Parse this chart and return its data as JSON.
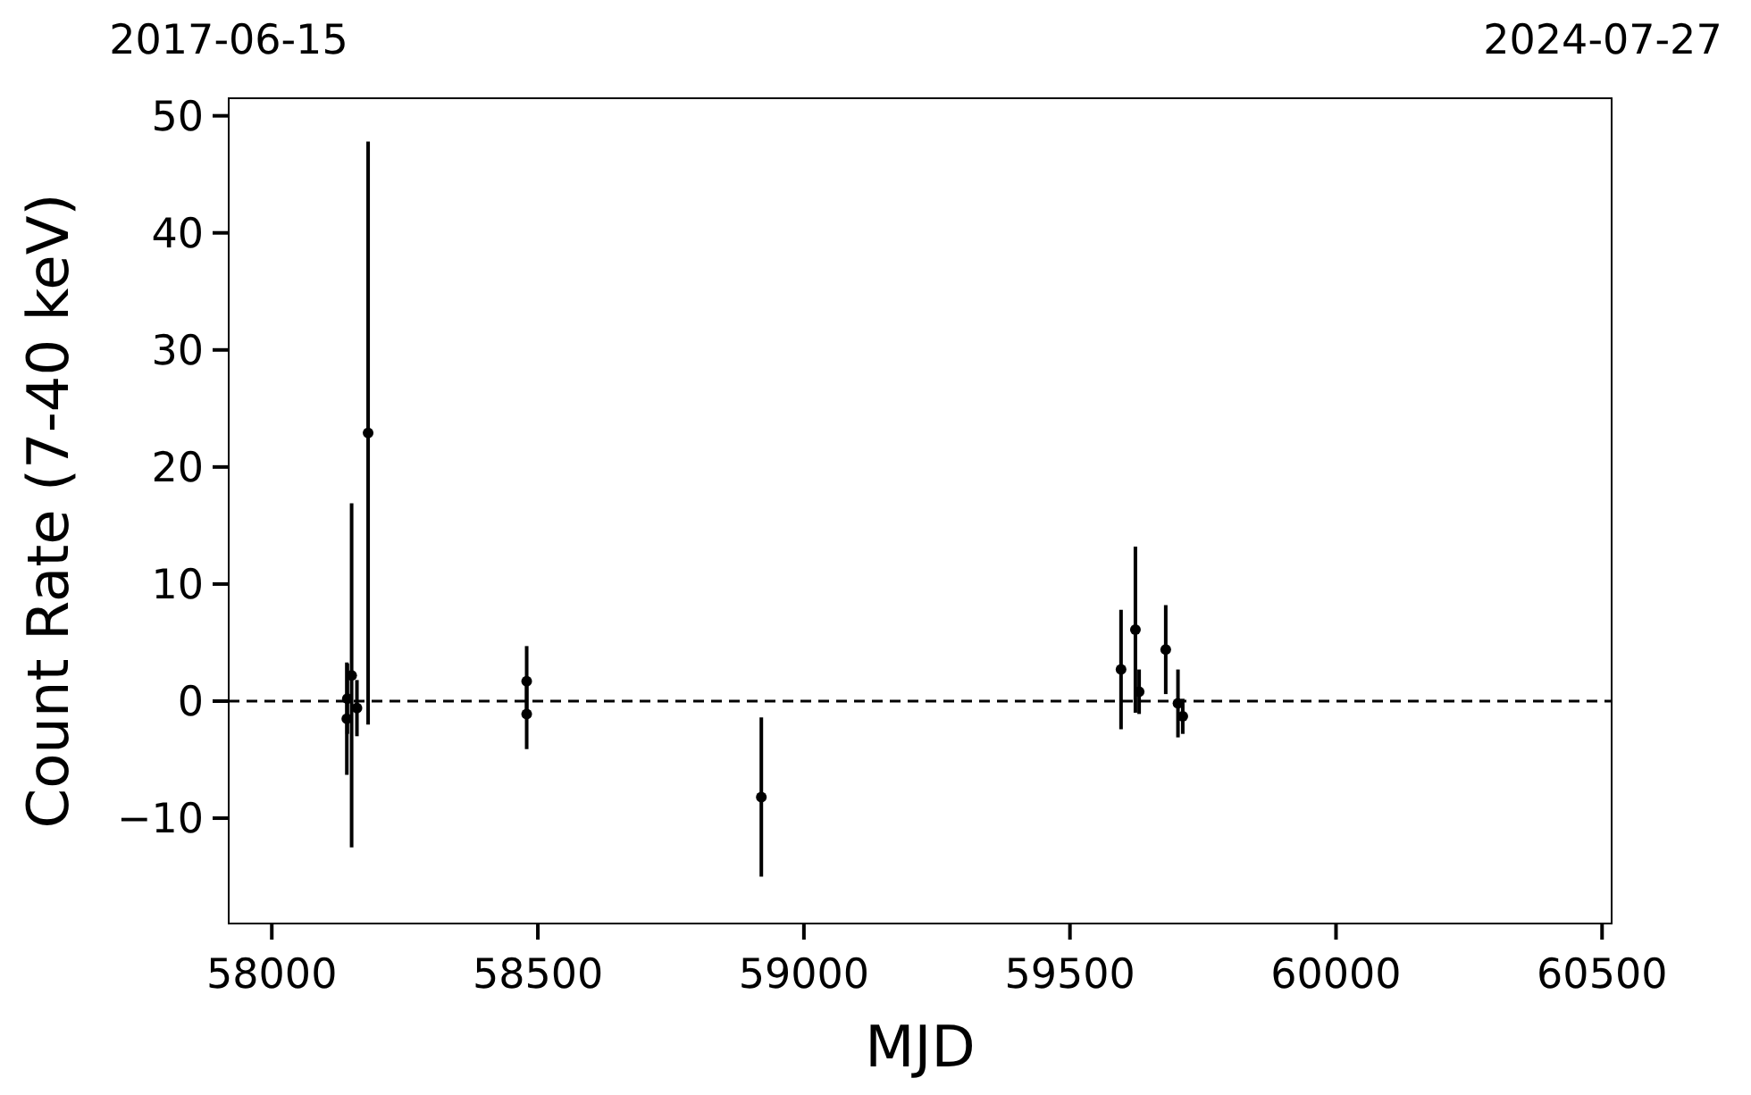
{
  "chart_data": {
    "type": "scatter",
    "xlabel": "MJD",
    "ylabel": "Count Rate (7-40 keV)",
    "x": [
      58141,
      58142,
      58150,
      58160,
      58181,
      58479,
      58479,
      58920,
      59596,
      59623,
      59630,
      59680,
      59703,
      59712
    ],
    "series": [
      {
        "color": "#000000",
        "values": [
          -1.5,
          0.2,
          2.2,
          -0.6,
          22.9,
          1.7,
          -1.1,
          -8.2,
          2.7,
          6.1,
          0.8,
          4.4,
          -0.2,
          -1.3
        ],
        "errors": [
          4.8,
          3,
          14.7,
          2.4,
          24.9,
          3,
          3,
          6.8,
          5.1,
          7.1,
          1.9,
          3.8,
          2.9,
          1.5
        ]
      }
    ],
    "xlim": [
      57919,
      60518
    ],
    "xticks": [
      58000,
      58500,
      59000,
      59500,
      60000,
      60500
    ],
    "x2lim": [
      "2017-06-15",
      "2024-07-27"
    ],
    "x2ticks": [
      "2017-06-15",
      "2024-07-27"
    ],
    "ylim": [
      -19,
      51.5
    ],
    "yticks": [
      -10,
      0,
      10,
      20,
      30,
      40,
      50
    ],
    "ref_lines": [
      {
        "axis": "y",
        "value": 0,
        "line_style": "dashed",
        "color": "#000000"
      }
    ],
    "marker": "circle",
    "grid": false
  }
}
